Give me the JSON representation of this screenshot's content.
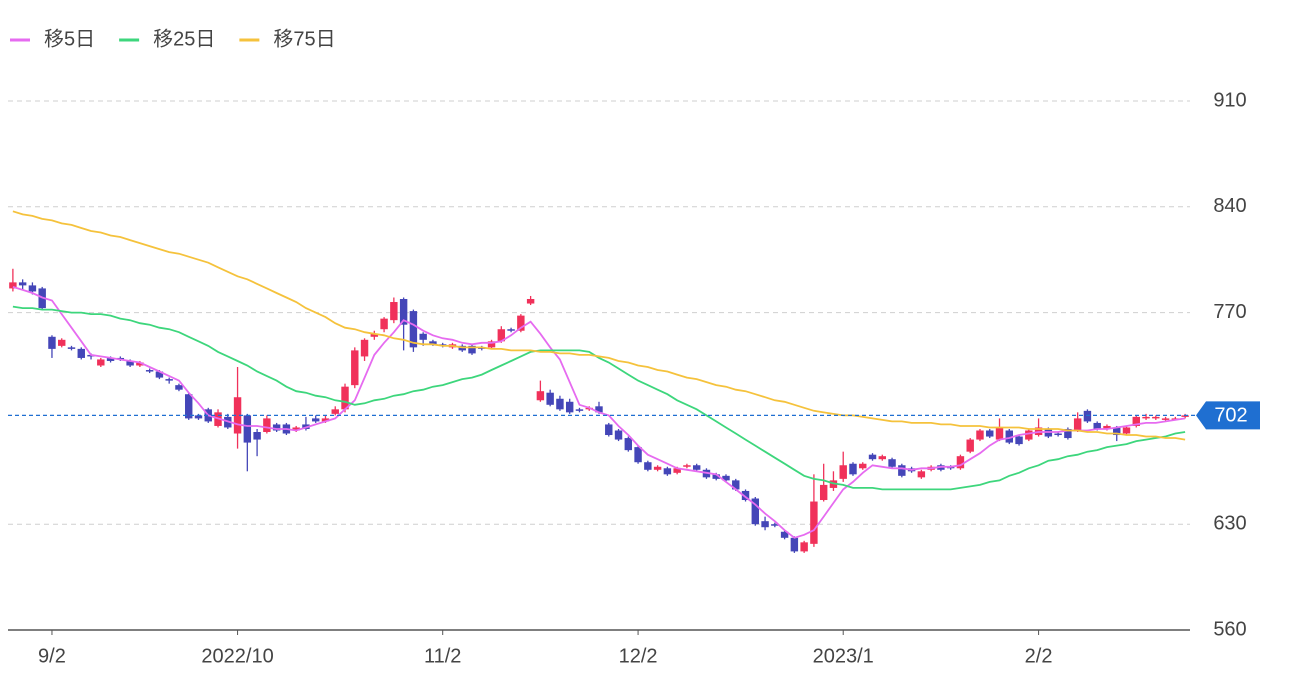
{
  "chart_data": {
    "type": "candlestick",
    "categories": [
      null,
      null,
      null,
      null,
      "9/2",
      null,
      null,
      null,
      null,
      null,
      null,
      null,
      null,
      null,
      null,
      null,
      null,
      null,
      null,
      null,
      null,
      null,
      null,
      "2022/10",
      null,
      null,
      null,
      null,
      null,
      null,
      null,
      null,
      null,
      null,
      null,
      null,
      null,
      null,
      null,
      null,
      null,
      null,
      null,
      null,
      "11/2",
      null,
      null,
      null,
      null,
      null,
      null,
      null,
      null,
      null,
      null,
      null,
      null,
      null,
      null,
      null,
      null,
      null,
      null,
      null,
      "12/2",
      null,
      null,
      null,
      null,
      null,
      null,
      null,
      null,
      null,
      null,
      null,
      null,
      null,
      null,
      null,
      null,
      null,
      null,
      null,
      null,
      "2023/1",
      null,
      null,
      null,
      null,
      null,
      null,
      null,
      null,
      null,
      null,
      null,
      null,
      null,
      null,
      null,
      null,
      null,
      null,
      null,
      "2/2",
      null,
      null,
      null,
      null,
      null,
      null,
      null,
      null,
      null,
      null,
      null,
      null,
      null,
      null,
      null
    ],
    "open": [
      786,
      790,
      788,
      786,
      754,
      748,
      747,
      746,
      742,
      735,
      740,
      740,
      738,
      735,
      732,
      731,
      726,
      722,
      716,
      702,
      706,
      695,
      701,
      690,
      702,
      691,
      691,
      696,
      696,
      692,
      696,
      700,
      698,
      703,
      706,
      722,
      741,
      754,
      759,
      765,
      779,
      771,
      756,
      751,
      749,
      747,
      748,
      748,
      747,
      747,
      751,
      759,
      758,
      776,
      712,
      717,
      713,
      711,
      706,
      706,
      708,
      696,
      692,
      687,
      681,
      671,
      666,
      667,
      664,
      668,
      669,
      666,
      663,
      662,
      659,
      652,
      647,
      632,
      630,
      625,
      621,
      612,
      617,
      646,
      654,
      660,
      670,
      667,
      676,
      673,
      673,
      669,
      667,
      661,
      666,
      669,
      668,
      667,
      678,
      686,
      692,
      686,
      692,
      688,
      686,
      689,
      693,
      690,
      693,
      692,
      705,
      697,
      693,
      694,
      690,
      695,
      700,
      700,
      699,
      700,
      701
    ],
    "high": [
      799,
      792,
      790,
      787,
      755,
      753,
      748,
      747,
      743,
      740,
      741,
      741,
      739,
      738,
      733,
      732,
      727,
      723,
      717,
      703,
      707,
      706,
      703,
      734,
      703,
      693,
      702,
      697,
      697,
      695,
      701,
      702,
      702,
      708,
      723,
      747,
      753,
      758,
      767,
      780,
      780,
      772,
      757,
      752,
      750,
      750,
      749,
      749,
      748,
      752,
      761,
      760,
      769,
      781,
      725,
      719,
      715,
      713,
      707,
      708,
      711,
      697,
      693,
      688,
      682,
      672,
      669,
      668,
      668,
      670,
      670,
      667,
      664,
      663,
      660,
      653,
      648,
      635,
      631,
      626,
      622,
      619,
      663,
      670,
      665,
      678,
      671,
      671,
      677,
      676,
      674,
      670,
      668,
      666,
      669,
      670,
      669,
      676,
      687,
      693,
      693,
      700,
      693,
      689,
      693,
      700,
      694,
      691,
      694,
      704,
      706,
      698,
      696,
      695,
      695,
      702,
      703,
      702,
      701,
      701,
      703
    ],
    "low": [
      784,
      785,
      782,
      772,
      740,
      747,
      745,
      739,
      739,
      734,
      737,
      738,
      734,
      734,
      730,
      726,
      723,
      718,
      699,
      699,
      697,
      694,
      693,
      680,
      665,
      675,
      690,
      691,
      689,
      691,
      692,
      697,
      697,
      702,
      704,
      720,
      738,
      752,
      757,
      763,
      745,
      744,
      748,
      748,
      747,
      746,
      744,
      742,
      745,
      746,
      750,
      757,
      757,
      775,
      711,
      708,
      705,
      703,
      704,
      705,
      703,
      688,
      685,
      678,
      670,
      665,
      665,
      662,
      663,
      667,
      665,
      660,
      659,
      658,
      652,
      645,
      629,
      626,
      628,
      620,
      611,
      611,
      615,
      645,
      652,
      658,
      662,
      666,
      672,
      672,
      667,
      661,
      664,
      660,
      665,
      665,
      666,
      666,
      677,
      685,
      687,
      685,
      683,
      682,
      685,
      688,
      687,
      688,
      686,
      691,
      697,
      692,
      692,
      685,
      689,
      694,
      699,
      699,
      698,
      699,
      700
    ],
    "close": [
      790,
      788,
      784,
      773,
      746,
      752,
      746,
      740,
      741,
      739,
      738,
      739,
      735,
      737,
      731,
      727,
      725,
      719,
      700,
      700,
      698,
      704,
      694,
      714,
      684,
      686,
      700,
      692,
      690,
      694,
      693,
      698,
      700,
      706,
      721,
      745,
      752,
      756,
      766,
      777,
      762,
      747,
      752,
      749,
      748,
      749,
      745,
      743,
      746,
      751,
      759,
      758,
      768,
      779,
      718,
      709,
      706,
      704,
      705,
      707,
      704,
      689,
      686,
      679,
      671,
      666,
      668,
      663,
      667,
      669,
      666,
      661,
      660,
      659,
      653,
      646,
      630,
      628,
      629,
      621,
      612,
      618,
      645,
      656,
      659,
      669,
      663,
      670,
      673,
      675,
      668,
      662,
      665,
      665,
      668,
      666,
      667,
      675,
      686,
      692,
      688,
      694,
      684,
      683,
      692,
      694,
      688,
      689,
      687,
      700,
      698,
      693,
      695,
      689,
      694,
      701,
      701,
      701,
      700,
      700,
      702
    ],
    "up_color": "#f0315a",
    "down_color": "#4446b8",
    "series": [
      {
        "name": "移5日",
        "color": "#e66bf0",
        "values": [
          787,
          785,
          783,
          780,
          778,
          769,
          760,
          751,
          742,
          741,
          740,
          739,
          738,
          737,
          734,
          731,
          728,
          725,
          717,
          710,
          702,
          700,
          698,
          696,
          695,
          695,
          694,
          693,
          693,
          692,
          694,
          696,
          698,
          700,
          706,
          712,
          727,
          742,
          750,
          757,
          765,
          762,
          758,
          755,
          753,
          752,
          750,
          749,
          750,
          750,
          751,
          755,
          760,
          764,
          756,
          747,
          739,
          724,
          709,
          707,
          704,
          702,
          695,
          689,
          682,
          676,
          673,
          670,
          667,
          666,
          665,
          664,
          663,
          658,
          653,
          648,
          643,
          637,
          632,
          626,
          621,
          623,
          626,
          635,
          644,
          653,
          658,
          664,
          669,
          668,
          667,
          667,
          666,
          667,
          667,
          668,
          668,
          669,
          673,
          677,
          682,
          686,
          687,
          689,
          690,
          691,
          691,
          691,
          692,
          692,
          692,
          693,
          693,
          694,
          695,
          696,
          697,
          697,
          698,
          699,
          700
        ]
      },
      {
        "name": "移25日",
        "color": "#3dd67c",
        "values": [
          774,
          773,
          773,
          772,
          772,
          771,
          770,
          770,
          769,
          769,
          768,
          766,
          765,
          763,
          762,
          760,
          759,
          757,
          754,
          751,
          748,
          744,
          741,
          738,
          735,
          731,
          728,
          725,
          721,
          718,
          717,
          715,
          714,
          712,
          711,
          709,
          710,
          712,
          713,
          715,
          716,
          718,
          719,
          721,
          722,
          724,
          726,
          727,
          729,
          732,
          735,
          738,
          741,
          744,
          745,
          745,
          745,
          745,
          745,
          744,
          740,
          737,
          733,
          729,
          725,
          722,
          719,
          716,
          712,
          709,
          706,
          702,
          698,
          694,
          690,
          686,
          682,
          678,
          674,
          670,
          666,
          662,
          660,
          659,
          657,
          656,
          654,
          654,
          654,
          653,
          653,
          653,
          653,
          653,
          653,
          653,
          653,
          654,
          655,
          656,
          658,
          659,
          662,
          664,
          667,
          669,
          672,
          673,
          675,
          676,
          678,
          679,
          681,
          682,
          683,
          685,
          686,
          687,
          688,
          690,
          691
        ]
      },
      {
        "name": "移75日",
        "color": "#f5c23c",
        "values": [
          837,
          835,
          834,
          832,
          831,
          829,
          828,
          826,
          824,
          823,
          821,
          820,
          818,
          816,
          814,
          812,
          810,
          809,
          807,
          805,
          803,
          800,
          797,
          794,
          792,
          789,
          786,
          783,
          780,
          777,
          773,
          770,
          767,
          763,
          760,
          759,
          757,
          756,
          755,
          753,
          752,
          750,
          749,
          749,
          748,
          748,
          747,
          747,
          747,
          746,
          746,
          745,
          745,
          745,
          744,
          744,
          743,
          743,
          742,
          742,
          741,
          740,
          738,
          737,
          735,
          734,
          732,
          731,
          729,
          727,
          726,
          724,
          722,
          721,
          719,
          718,
          716,
          714,
          712,
          711,
          709,
          707,
          705,
          704,
          703,
          702,
          702,
          701,
          700,
          699,
          698,
          698,
          697,
          697,
          697,
          696,
          696,
          695,
          695,
          695,
          694,
          694,
          694,
          694,
          693,
          693,
          693,
          693,
          692,
          692,
          691,
          691,
          690,
          690,
          689,
          689,
          688,
          688,
          687,
          687,
          686
        ]
      }
    ],
    "current_price": 702,
    "price_color": "#1f6fd1",
    "ylim": [
      560,
      910
    ],
    "yticks": [
      560,
      630,
      770,
      840,
      910
    ],
    "grid": true
  }
}
